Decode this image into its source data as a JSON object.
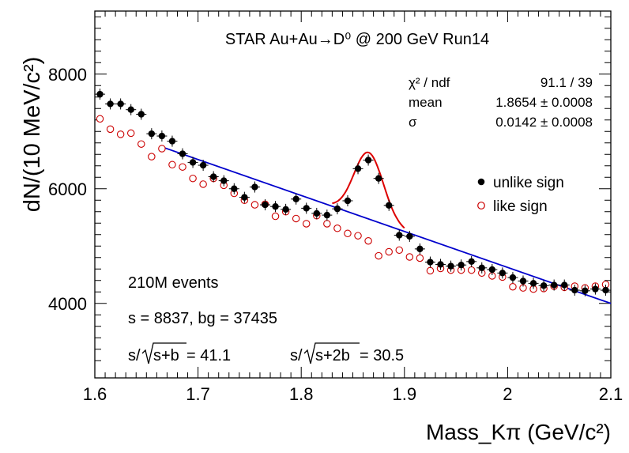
{
  "chart_data": {
    "type": "scatter",
    "title": "STAR Au+Au→D⁰ @ 200 GeV Run14",
    "xlabel": "Mass_Kπ (GeV/c²)",
    "ylabel": "dN/(10 MeV/c²)",
    "xlim": [
      1.6,
      2.1
    ],
    "ylim": [
      2700,
      9100
    ],
    "x_ticks": [
      "1.6",
      "1.7",
      "1.8",
      "1.9",
      "2",
      "2.1"
    ],
    "y_ticks": [
      "4000",
      "6000",
      "8000"
    ],
    "grid": false,
    "legend_position": "right",
    "series": [
      {
        "name": "unlike sign",
        "color": "#000000",
        "marker": "filled-circle",
        "x": [
          1.605,
          1.615,
          1.625,
          1.635,
          1.645,
          1.655,
          1.665,
          1.675,
          1.685,
          1.695,
          1.705,
          1.715,
          1.725,
          1.735,
          1.745,
          1.755,
          1.765,
          1.775,
          1.785,
          1.795,
          1.805,
          1.815,
          1.825,
          1.835,
          1.845,
          1.855,
          1.865,
          1.875,
          1.885,
          1.895,
          1.905,
          1.915,
          1.925,
          1.935,
          1.945,
          1.955,
          1.965,
          1.975,
          1.985,
          1.995,
          2.005,
          2.015,
          2.025,
          2.035,
          2.045,
          2.055,
          2.065,
          2.075,
          2.085,
          2.095
        ],
        "y": [
          7650,
          7480,
          7480,
          7380,
          7300,
          6960,
          6920,
          6830,
          6610,
          6460,
          6410,
          6210,
          6140,
          6000,
          5850,
          6030,
          5720,
          5690,
          5640,
          5820,
          5660,
          5570,
          5540,
          5650,
          5790,
          6350,
          6500,
          6180,
          5710,
          5190,
          5170,
          4950,
          4720,
          4680,
          4650,
          4670,
          4730,
          4620,
          4590,
          4530,
          4450,
          4390,
          4350,
          4310,
          4320,
          4320,
          4230,
          4220,
          4250,
          4230
        ]
      },
      {
        "name": "like sign",
        "color": "#cc0000",
        "marker": "open-circle",
        "x": [
          1.605,
          1.615,
          1.625,
          1.635,
          1.645,
          1.655,
          1.665,
          1.675,
          1.685,
          1.695,
          1.705,
          1.715,
          1.725,
          1.735,
          1.745,
          1.755,
          1.765,
          1.775,
          1.785,
          1.795,
          1.805,
          1.815,
          1.825,
          1.835,
          1.845,
          1.855,
          1.865,
          1.875,
          1.885,
          1.895,
          1.905,
          1.915,
          1.925,
          1.935,
          1.945,
          1.955,
          1.965,
          1.975,
          1.985,
          1.995,
          2.005,
          2.015,
          2.025,
          2.035,
          2.045,
          2.055,
          2.065,
          2.075,
          2.085,
          2.095
        ],
        "y": [
          7220,
          7040,
          6950,
          6970,
          6780,
          6560,
          6700,
          6420,
          6380,
          6180,
          6080,
          6180,
          6060,
          5920,
          5800,
          5720,
          5730,
          5520,
          5600,
          5480,
          5390,
          5530,
          5390,
          5310,
          5220,
          5180,
          5090,
          4830,
          4900,
          4930,
          4810,
          4790,
          4570,
          4610,
          4580,
          4580,
          4580,
          4530,
          4480,
          4460,
          4290,
          4270,
          4250,
          4260,
          4300,
          4280,
          4300,
          4270,
          4300,
          4330
        ]
      }
    ],
    "fit": {
      "background_line": {
        "color": "#0000cc",
        "x": [
          1.665,
          2.1
        ],
        "y": [
          6730,
          4000
        ]
      },
      "signal_peak": {
        "color": "#dd0000",
        "x_range": [
          1.83,
          1.9
        ],
        "mean": 1.8654,
        "sigma": 0.0142,
        "amplitude": 1160
      }
    },
    "stats_box": {
      "rows": [
        {
          "label": "χ² / ndf",
          "value": "91.1 / 39"
        },
        {
          "label": "mean",
          "value": "1.8654 ± 0.0008"
        },
        {
          "label": "σ",
          "value": "0.0142 ± 0.0008"
        }
      ]
    },
    "annotations": {
      "events": "210M events",
      "counts": "s = 8837,  bg = 37435",
      "sig1_prefix": "s/",
      "sig1_rad": "s+b",
      "sig1_value": " = 41.1",
      "sig2_prefix": "s/",
      "sig2_rad": "s+2b",
      "sig2_value": " = 30.5"
    }
  }
}
